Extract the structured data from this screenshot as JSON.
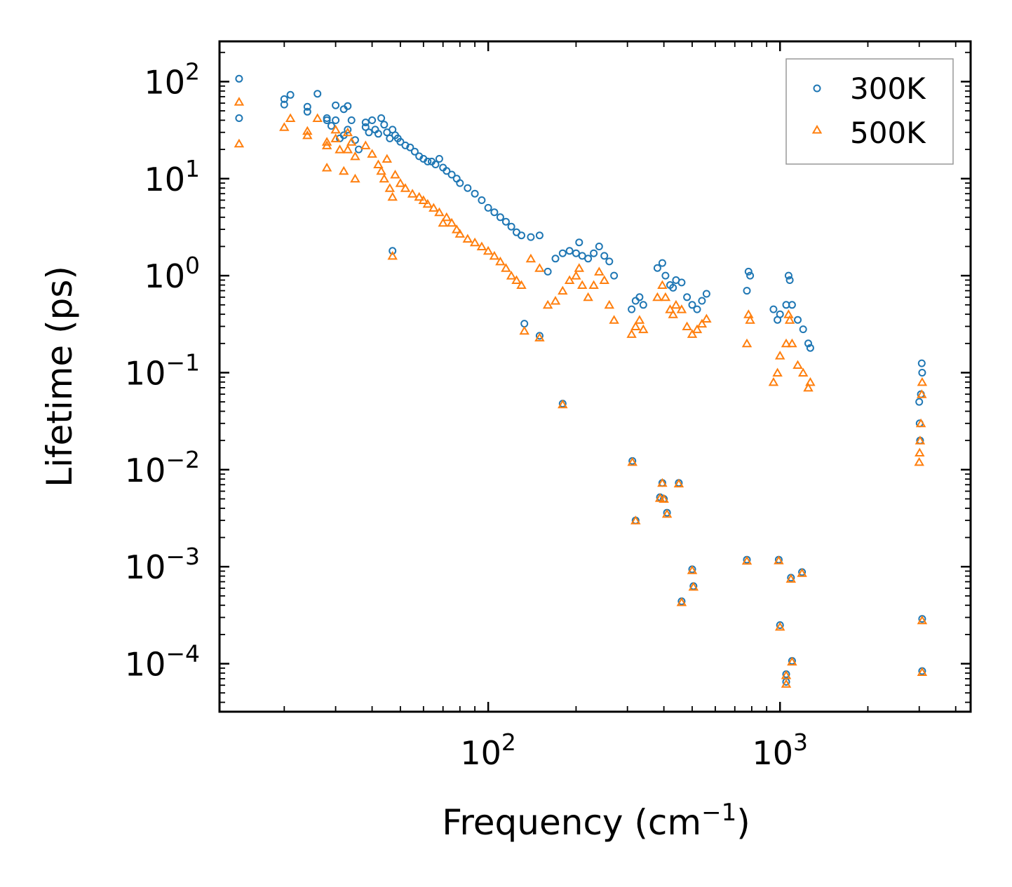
{
  "chart_data": {
    "type": "scatter",
    "title": "",
    "xlabel": {
      "text": "Frequency (cm",
      "sup": "−1",
      "close": ")"
    },
    "ylabel": "Lifetime (ps)",
    "xscale": "log",
    "yscale": "log",
    "xlim": [
      12,
      4500
    ],
    "ylim": [
      3.2e-05,
      260
    ],
    "xticks": [
      {
        "value": 100,
        "base": "10",
        "exp": "2"
      },
      {
        "value": 1000,
        "base": "10",
        "exp": "3"
      }
    ],
    "yticks": [
      {
        "value": 100,
        "base": "10",
        "exp": "2"
      },
      {
        "value": 10,
        "base": "10",
        "exp": "1"
      },
      {
        "value": 1,
        "base": "10",
        "exp": "0"
      },
      {
        "value": 0.1,
        "base": "10",
        "exp": "−1"
      },
      {
        "value": 0.01,
        "base": "10",
        "exp": "−2"
      },
      {
        "value": 0.001,
        "base": "10",
        "exp": "−3"
      },
      {
        "value": 0.0001,
        "base": "10",
        "exp": "−4"
      }
    ],
    "legend": {
      "position": "top-right"
    },
    "series": [
      {
        "name": "300K",
        "marker": "circle",
        "color": "#1f77b4",
        "points": [
          [
            14,
            107
          ],
          [
            14,
            42
          ],
          [
            20,
            66
          ],
          [
            20,
            58
          ],
          [
            21,
            73
          ],
          [
            24,
            55
          ],
          [
            24,
            49
          ],
          [
            26,
            75
          ],
          [
            28,
            42
          ],
          [
            28,
            40
          ],
          [
            29,
            35
          ],
          [
            30,
            57
          ],
          [
            30,
            40
          ],
          [
            31,
            26
          ],
          [
            32,
            52
          ],
          [
            32,
            28
          ],
          [
            33,
            56
          ],
          [
            33,
            32
          ],
          [
            34,
            40
          ],
          [
            35,
            25
          ],
          [
            36,
            20
          ],
          [
            38,
            38
          ],
          [
            38,
            34
          ],
          [
            39,
            30
          ],
          [
            40,
            40
          ],
          [
            41,
            32
          ],
          [
            42,
            29
          ],
          [
            43,
            42
          ],
          [
            44,
            36
          ],
          [
            45,
            30
          ],
          [
            46,
            26
          ],
          [
            47,
            32
          ],
          [
            48,
            28
          ],
          [
            49,
            26
          ],
          [
            50,
            24
          ],
          [
            52,
            22
          ],
          [
            54,
            21
          ],
          [
            56,
            19
          ],
          [
            58,
            17
          ],
          [
            60,
            16
          ],
          [
            62,
            15
          ],
          [
            64,
            15
          ],
          [
            66,
            14
          ],
          [
            68,
            16
          ],
          [
            70,
            13
          ],
          [
            72,
            12
          ],
          [
            75,
            11
          ],
          [
            78,
            10
          ],
          [
            80,
            9
          ],
          [
            85,
            8
          ],
          [
            90,
            7
          ],
          [
            95,
            6
          ],
          [
            100,
            5
          ],
          [
            105,
            4.5
          ],
          [
            110,
            4
          ],
          [
            115,
            3.6
          ],
          [
            120,
            3.2
          ],
          [
            125,
            2.8
          ],
          [
            130,
            2.6
          ],
          [
            140,
            2.5
          ],
          [
            150,
            2.6
          ],
          [
            47,
            1.8
          ],
          [
            133,
            0.32
          ],
          [
            150,
            0.24
          ],
          [
            180,
            0.048
          ],
          [
            160,
            1.1
          ],
          [
            170,
            1.5
          ],
          [
            180,
            1.7
          ],
          [
            190,
            1.8
          ],
          [
            200,
            1.7
          ],
          [
            205,
            2.2
          ],
          [
            210,
            1.6
          ],
          [
            220,
            1.5
          ],
          [
            230,
            1.7
          ],
          [
            240,
            2.0
          ],
          [
            250,
            1.6
          ],
          [
            260,
            1.4
          ],
          [
            270,
            1.0
          ],
          [
            310,
            0.45
          ],
          [
            320,
            0.55
          ],
          [
            330,
            0.6
          ],
          [
            340,
            0.5
          ],
          [
            380,
            1.2
          ],
          [
            395,
            1.35
          ],
          [
            405,
            1.0
          ],
          [
            420,
            0.8
          ],
          [
            430,
            0.75
          ],
          [
            440,
            0.9
          ],
          [
            460,
            0.85
          ],
          [
            480,
            0.6
          ],
          [
            500,
            0.5
          ],
          [
            520,
            0.45
          ],
          [
            540,
            0.55
          ],
          [
            560,
            0.65
          ],
          [
            770,
            0.7
          ],
          [
            780,
            1.1
          ],
          [
            790,
            1.0
          ],
          [
            950,
            0.45
          ],
          [
            980,
            0.35
          ],
          [
            1000,
            0.4
          ],
          [
            1050,
            0.5
          ],
          [
            1070,
            1.0
          ],
          [
            1080,
            0.9
          ],
          [
            1100,
            0.5
          ],
          [
            1150,
            0.35
          ],
          [
            1200,
            0.28
          ],
          [
            1250,
            0.2
          ],
          [
            1270,
            0.18
          ],
          [
            3000,
            0.05
          ],
          [
            3010,
            0.03
          ],
          [
            3020,
            0.02
          ],
          [
            3040,
            0.06
          ],
          [
            3060,
            0.125
          ],
          [
            3070,
            0.1
          ],
          [
            312,
            0.0123
          ],
          [
            320,
            0.003
          ],
          [
            388,
            0.0052
          ],
          [
            395,
            0.0073
          ],
          [
            400,
            0.005
          ],
          [
            410,
            0.0036
          ],
          [
            450,
            0.0073
          ],
          [
            460,
            0.00044
          ],
          [
            500,
            0.00094
          ],
          [
            505,
            0.00063
          ],
          [
            770,
            0.00118
          ],
          [
            990,
            0.00118
          ],
          [
            1000,
            0.00025
          ],
          [
            1050,
            7.8e-05
          ],
          [
            1050,
            6.5e-05
          ],
          [
            1090,
            0.00077
          ],
          [
            1100,
            0.000107
          ],
          [
            1190,
            0.00088
          ],
          [
            3070,
            0.00029
          ],
          [
            3070,
            8.4e-05
          ]
        ]
      },
      {
        "name": "500K",
        "marker": "triangle",
        "color": "#ff7f0e",
        "points": [
          [
            14,
            62
          ],
          [
            14,
            23
          ],
          [
            20,
            34
          ],
          [
            21,
            42
          ],
          [
            24,
            31
          ],
          [
            24,
            28
          ],
          [
            26,
            42
          ],
          [
            28,
            24
          ],
          [
            28,
            22
          ],
          [
            28,
            13
          ],
          [
            30,
            32
          ],
          [
            30,
            26
          ],
          [
            31,
            20
          ],
          [
            32,
            12
          ],
          [
            33,
            30
          ],
          [
            33,
            20
          ],
          [
            34,
            24
          ],
          [
            35,
            17
          ],
          [
            35,
            10
          ],
          [
            38,
            22
          ],
          [
            40,
            18
          ],
          [
            42,
            14
          ],
          [
            43,
            12
          ],
          [
            44,
            10
          ],
          [
            45,
            16
          ],
          [
            46,
            8
          ],
          [
            47,
            6.5
          ],
          [
            48,
            11
          ],
          [
            50,
            9
          ],
          [
            52,
            8
          ],
          [
            55,
            7
          ],
          [
            58,
            6.5
          ],
          [
            60,
            6
          ],
          [
            62,
            5.5
          ],
          [
            65,
            5
          ],
          [
            68,
            4.5
          ],
          [
            70,
            3.5
          ],
          [
            72,
            4
          ],
          [
            75,
            3.5
          ],
          [
            78,
            3
          ],
          [
            80,
            2.7
          ],
          [
            85,
            2.4
          ],
          [
            90,
            2.2
          ],
          [
            95,
            2
          ],
          [
            100,
            1.8
          ],
          [
            105,
            1.6
          ],
          [
            110,
            1.4
          ],
          [
            115,
            1.2
          ],
          [
            120,
            1.0
          ],
          [
            125,
            0.9
          ],
          [
            130,
            0.8
          ],
          [
            140,
            1.5
          ],
          [
            150,
            1.2
          ],
          [
            47,
            1.6
          ],
          [
            133,
            0.27
          ],
          [
            150,
            0.23
          ],
          [
            180,
            0.047
          ],
          [
            160,
            0.5
          ],
          [
            170,
            0.55
          ],
          [
            180,
            0.7
          ],
          [
            190,
            0.9
          ],
          [
            200,
            1.0
          ],
          [
            205,
            1.2
          ],
          [
            210,
            0.8
          ],
          [
            220,
            0.6
          ],
          [
            230,
            0.8
          ],
          [
            240,
            1.1
          ],
          [
            250,
            0.9
          ],
          [
            260,
            0.5
          ],
          [
            270,
            0.35
          ],
          [
            310,
            0.25
          ],
          [
            320,
            0.3
          ],
          [
            330,
            0.35
          ],
          [
            340,
            0.28
          ],
          [
            380,
            0.6
          ],
          [
            395,
            0.8
          ],
          [
            405,
            0.6
          ],
          [
            420,
            0.45
          ],
          [
            430,
            0.4
          ],
          [
            440,
            0.5
          ],
          [
            460,
            0.45
          ],
          [
            480,
            0.3
          ],
          [
            500,
            0.25
          ],
          [
            520,
            0.28
          ],
          [
            540,
            0.32
          ],
          [
            560,
            0.36
          ],
          [
            770,
            0.2
          ],
          [
            780,
            0.4
          ],
          [
            790,
            0.35
          ],
          [
            950,
            0.08
          ],
          [
            980,
            0.1
          ],
          [
            1000,
            0.15
          ],
          [
            1050,
            0.2
          ],
          [
            1070,
            0.4
          ],
          [
            1080,
            0.35
          ],
          [
            1100,
            0.2
          ],
          [
            1150,
            0.12
          ],
          [
            1200,
            0.1
          ],
          [
            1250,
            0.07
          ],
          [
            1270,
            0.08
          ],
          [
            3000,
            0.012
          ],
          [
            3010,
            0.015
          ],
          [
            3020,
            0.02
          ],
          [
            3040,
            0.03
          ],
          [
            3060,
            0.06
          ],
          [
            3070,
            0.08
          ],
          [
            312,
            0.012
          ],
          [
            320,
            0.003
          ],
          [
            388,
            0.0051
          ],
          [
            395,
            0.0073
          ],
          [
            400,
            0.005
          ],
          [
            410,
            0.0035
          ],
          [
            450,
            0.0072
          ],
          [
            460,
            0.00043
          ],
          [
            500,
            0.00092
          ],
          [
            505,
            0.00062
          ],
          [
            770,
            0.00115
          ],
          [
            990,
            0.00116
          ],
          [
            1000,
            0.00024
          ],
          [
            1050,
            7.6e-05
          ],
          [
            1050,
            6.2e-05
          ],
          [
            1090,
            0.00075
          ],
          [
            1100,
            0.000105
          ],
          [
            1190,
            0.00086
          ],
          [
            3070,
            0.00028
          ],
          [
            3070,
            8.2e-05
          ]
        ]
      }
    ]
  }
}
